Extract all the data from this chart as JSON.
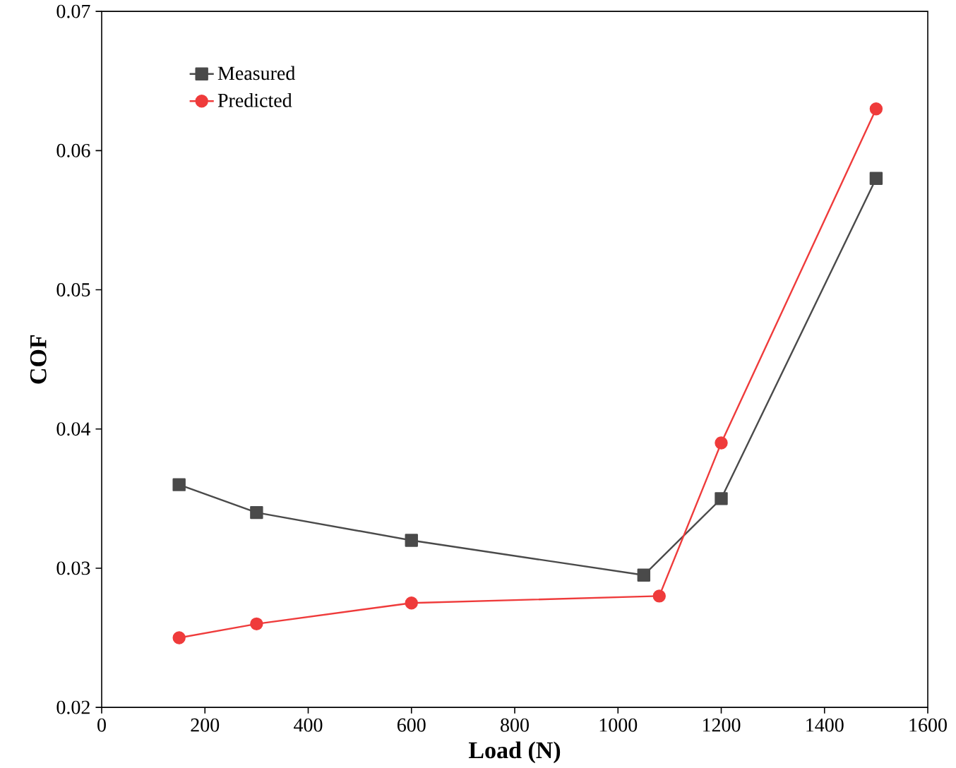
{
  "chart_data": {
    "type": "line",
    "xlabel": "Load (N)",
    "ylabel": "COF",
    "xlim": [
      0,
      1600
    ],
    "xticks": [
      0,
      200,
      400,
      600,
      800,
      1000,
      1200,
      1400,
      1600
    ],
    "ylim": [
      0.02,
      0.07
    ],
    "yticks": [
      0.02,
      0.03,
      0.04,
      0.05,
      0.06,
      0.07
    ],
    "legend": "top left",
    "grid": false,
    "series": [
      {
        "name": "Measured",
        "color": "#4a4a4a",
        "marker": "square",
        "x": [
          150,
          300,
          600,
          1050,
          1200,
          1500
        ],
        "values": [
          0.036,
          0.034,
          0.032,
          0.0295,
          0.035,
          0.058
        ]
      },
      {
        "name": "Predicted",
        "color": "#ef3b3b",
        "marker": "circle",
        "x": [
          150,
          300,
          600,
          1080,
          1200,
          1500
        ],
        "values": [
          0.025,
          0.026,
          0.0275,
          0.028,
          0.039,
          0.063
        ]
      }
    ]
  }
}
